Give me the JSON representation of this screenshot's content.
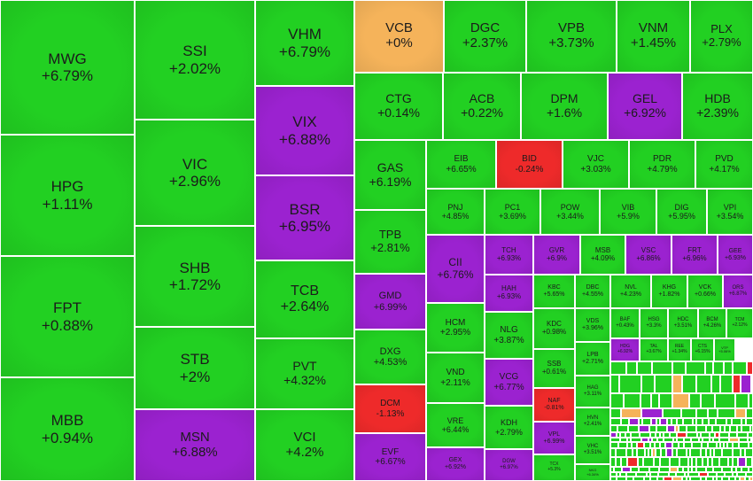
{
  "chart_data": {
    "type": "treemap",
    "title": "",
    "colors": {
      "up": "#22d022",
      "ceiling": "#9b22d0",
      "reference": "#f5b35a",
      "down": "#ee2a2a",
      "text": "#1b1b1b",
      "text_on_dark": "#ffffff"
    },
    "tiles": [
      {
        "symbol": "MWG",
        "change": "+6.79%",
        "status": "up"
      },
      {
        "symbol": "HPG",
        "change": "+1.11%",
        "status": "up"
      },
      {
        "symbol": "FPT",
        "change": "+0.88%",
        "status": "up"
      },
      {
        "symbol": "MBB",
        "change": "+0.94%",
        "status": "up"
      },
      {
        "symbol": "SSI",
        "change": "+2.02%",
        "status": "up"
      },
      {
        "symbol": "VIC",
        "change": "+2.96%",
        "status": "up"
      },
      {
        "symbol": "SHB",
        "change": "+1.72%",
        "status": "up"
      },
      {
        "symbol": "STB",
        "change": "+2%",
        "status": "up"
      },
      {
        "symbol": "MSN",
        "change": "+6.88%",
        "status": "ceiling"
      },
      {
        "symbol": "VHM",
        "change": "+6.79%",
        "status": "up"
      },
      {
        "symbol": "VIX",
        "change": "+6.88%",
        "status": "ceiling"
      },
      {
        "symbol": "BSR",
        "change": "+6.95%",
        "status": "ceiling"
      },
      {
        "symbol": "TCB",
        "change": "+2.64%",
        "status": "up"
      },
      {
        "symbol": "PVT",
        "change": "+4.32%",
        "status": "up"
      },
      {
        "symbol": "VCI",
        "change": "+4.2%",
        "status": "up"
      },
      {
        "symbol": "VCB",
        "change": "+0%",
        "status": "reference"
      },
      {
        "symbol": "DGC",
        "change": "+2.37%",
        "status": "up"
      },
      {
        "symbol": "VPB",
        "change": "+3.73%",
        "status": "up"
      },
      {
        "symbol": "VNM",
        "change": "+1.45%",
        "status": "up"
      },
      {
        "symbol": "PLX",
        "change": "+2.79%",
        "status": "up"
      },
      {
        "symbol": "CTG",
        "change": "+0.14%",
        "status": "up"
      },
      {
        "symbol": "ACB",
        "change": "+0.22%",
        "status": "up"
      },
      {
        "symbol": "DPM",
        "change": "+1.6%",
        "status": "up"
      },
      {
        "symbol": "GEL",
        "change": "+6.92%",
        "status": "ceiling"
      },
      {
        "symbol": "HDB",
        "change": "+2.39%",
        "status": "up"
      },
      {
        "symbol": "GAS",
        "change": "+6.19%",
        "status": "up"
      },
      {
        "symbol": "TPB",
        "change": "+2.81%",
        "status": "up"
      },
      {
        "symbol": "GMD",
        "change": "+6.99%",
        "status": "ceiling"
      },
      {
        "symbol": "DXG",
        "change": "+4.53%",
        "status": "up"
      },
      {
        "symbol": "DCM",
        "change": "-1.13%",
        "status": "down"
      },
      {
        "symbol": "EVF",
        "change": "+6.67%",
        "status": "ceiling"
      },
      {
        "symbol": "EIB",
        "change": "+6.65%",
        "status": "up"
      },
      {
        "symbol": "BID",
        "change": "-0.24%",
        "status": "down"
      },
      {
        "symbol": "VJC",
        "change": "+3.03%",
        "status": "up"
      },
      {
        "symbol": "PDR",
        "change": "+4.79%",
        "status": "up"
      },
      {
        "symbol": "PVD",
        "change": "+4.17%",
        "status": "up"
      },
      {
        "symbol": "PNJ",
        "change": "+4.85%",
        "status": "up"
      },
      {
        "symbol": "PC1",
        "change": "+3.69%",
        "status": "up"
      },
      {
        "symbol": "POW",
        "change": "+3.44%",
        "status": "up"
      },
      {
        "symbol": "VIB",
        "change": "+5.9%",
        "status": "up"
      },
      {
        "symbol": "DIG",
        "change": "+5.95%",
        "status": "up"
      },
      {
        "symbol": "VPI",
        "change": "+3.54%",
        "status": "up"
      },
      {
        "symbol": "CII",
        "change": "+6.76%",
        "status": "ceiling"
      },
      {
        "symbol": "TCH",
        "change": "+6.93%",
        "status": "ceiling"
      },
      {
        "symbol": "GVR",
        "change": "+6.9%",
        "status": "ceiling"
      },
      {
        "symbol": "MSB",
        "change": "+4.09%",
        "status": "up"
      },
      {
        "symbol": "VSC",
        "change": "+6.86%",
        "status": "ceiling"
      },
      {
        "symbol": "FRT",
        "change": "+6.96%",
        "status": "ceiling"
      },
      {
        "symbol": "GEE",
        "change": "+6.93%",
        "status": "ceiling"
      },
      {
        "symbol": "HAH",
        "change": "+6.93%",
        "status": "ceiling"
      },
      {
        "symbol": "KBC",
        "change": "+5.65%",
        "status": "up"
      },
      {
        "symbol": "DBC",
        "change": "+4.55%",
        "status": "up"
      },
      {
        "symbol": "NVL",
        "change": "+4.23%",
        "status": "up"
      },
      {
        "symbol": "KHG",
        "change": "+1.82%",
        "status": "up"
      },
      {
        "symbol": "VCK",
        "change": "+0.66%",
        "status": "up"
      },
      {
        "symbol": "ORS",
        "change": "+6.87%",
        "status": "ceiling"
      },
      {
        "symbol": "HCM",
        "change": "+2.95%",
        "status": "up"
      },
      {
        "symbol": "NLG",
        "change": "+3.87%",
        "status": "up"
      },
      {
        "symbol": "KDC",
        "change": "+0.98%",
        "status": "up"
      },
      {
        "symbol": "VDS",
        "change": "+3.96%",
        "status": "up"
      },
      {
        "symbol": "BAF",
        "change": "+0.43%",
        "status": "up"
      },
      {
        "symbol": "HSG",
        "change": "+3.3%",
        "status": "up"
      },
      {
        "symbol": "HDC",
        "change": "+3.51%",
        "status": "up"
      },
      {
        "symbol": "BCM",
        "change": "+4.26%",
        "status": "up"
      },
      {
        "symbol": "TCM",
        "change": "+2.12%",
        "status": "up"
      },
      {
        "symbol": "VND",
        "change": "+2.11%",
        "status": "up"
      },
      {
        "symbol": "VCG",
        "change": "+6.77%",
        "status": "ceiling"
      },
      {
        "symbol": "SSB",
        "change": "+0.61%",
        "status": "up"
      },
      {
        "symbol": "LPB",
        "change": "+2.71%",
        "status": "up"
      },
      {
        "symbol": "HDG",
        "change": "+6.92%",
        "status": "ceiling"
      },
      {
        "symbol": "TAL",
        "change": "+3.67%",
        "status": "up"
      },
      {
        "symbol": "REE",
        "change": "+1.34%",
        "status": "up"
      },
      {
        "symbol": "CTS",
        "change": "+6.15%",
        "status": "up"
      },
      {
        "symbol": "VTP",
        "change": "+5.06%",
        "status": "up"
      },
      {
        "symbol": "VRE",
        "change": "+6.44%",
        "status": "up"
      },
      {
        "symbol": "KDH",
        "change": "+2.79%",
        "status": "up"
      },
      {
        "symbol": "NAF",
        "change": "-0.81%",
        "status": "down"
      },
      {
        "symbol": "HAG",
        "change": "+3.11%",
        "status": "up"
      },
      {
        "symbol": "HVN",
        "change": "+2.41%",
        "status": "up"
      },
      {
        "symbol": "VHC",
        "change": "+3.51%",
        "status": "up"
      },
      {
        "symbol": "VPL",
        "change": "+6.99%",
        "status": "ceiling"
      },
      {
        "symbol": "GEX",
        "change": "+6.92%",
        "status": "ceiling"
      },
      {
        "symbol": "DGW",
        "change": "+6.97%",
        "status": "ceiling"
      },
      {
        "symbol": "TCX",
        "change": "+5.3%",
        "status": "up"
      },
      {
        "symbol": "NKG",
        "change": "+6.34%",
        "status": "up"
      }
    ]
  }
}
